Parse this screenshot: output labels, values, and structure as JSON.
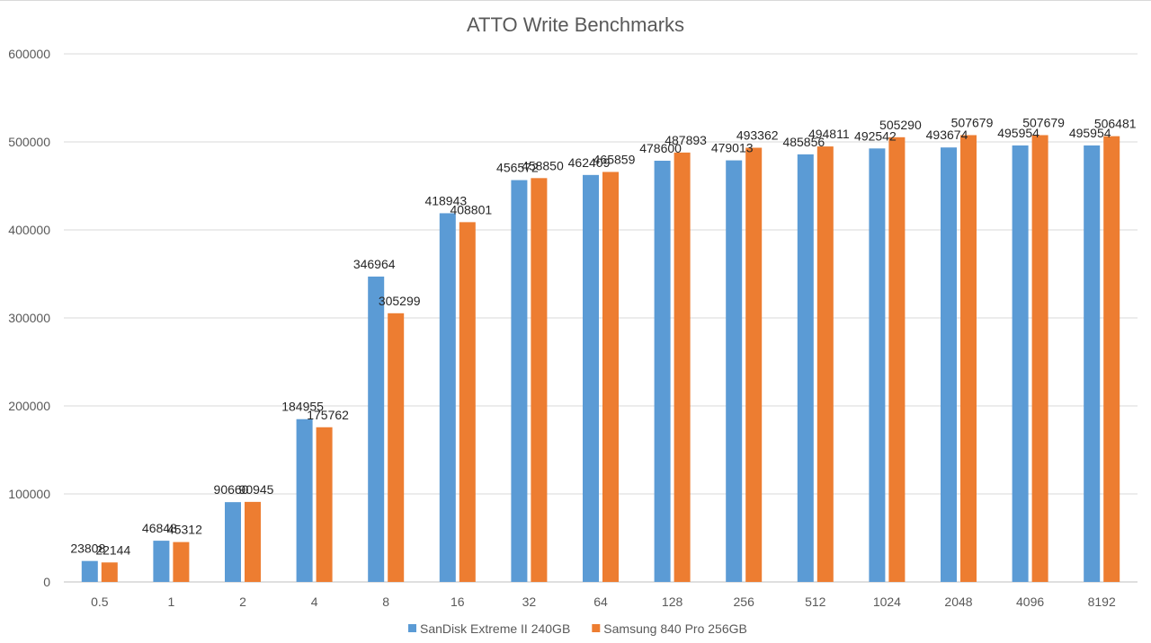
{
  "chart_data": {
    "type": "bar",
    "title": "ATTO Write Benchmarks",
    "xlabel": "",
    "ylabel": "",
    "categories": [
      "0.5",
      "1",
      "2",
      "4",
      "8",
      "16",
      "32",
      "64",
      "128",
      "256",
      "512",
      "1024",
      "2048",
      "4096",
      "8192"
    ],
    "ylim": [
      0,
      600000
    ],
    "yticks": [
      0,
      100000,
      200000,
      300000,
      400000,
      500000,
      600000
    ],
    "grid": true,
    "legend_position": "bottom",
    "series": [
      {
        "name": "SanDisk Extreme II 240GB",
        "color": "#5b9bd5",
        "values": [
          23808,
          46848,
          90660,
          184955,
          346964,
          418943,
          456572,
          462409,
          478600,
          479013,
          485856,
          492542,
          493674,
          495954,
          495954
        ]
      },
      {
        "name": "Samsung 840 Pro 256GB",
        "color": "#ed7d31",
        "values": [
          22144,
          45312,
          90945,
          175762,
          305299,
          408801,
          458850,
          465859,
          487893,
          493362,
          494811,
          505290,
          507679,
          507679,
          506481
        ]
      }
    ]
  }
}
